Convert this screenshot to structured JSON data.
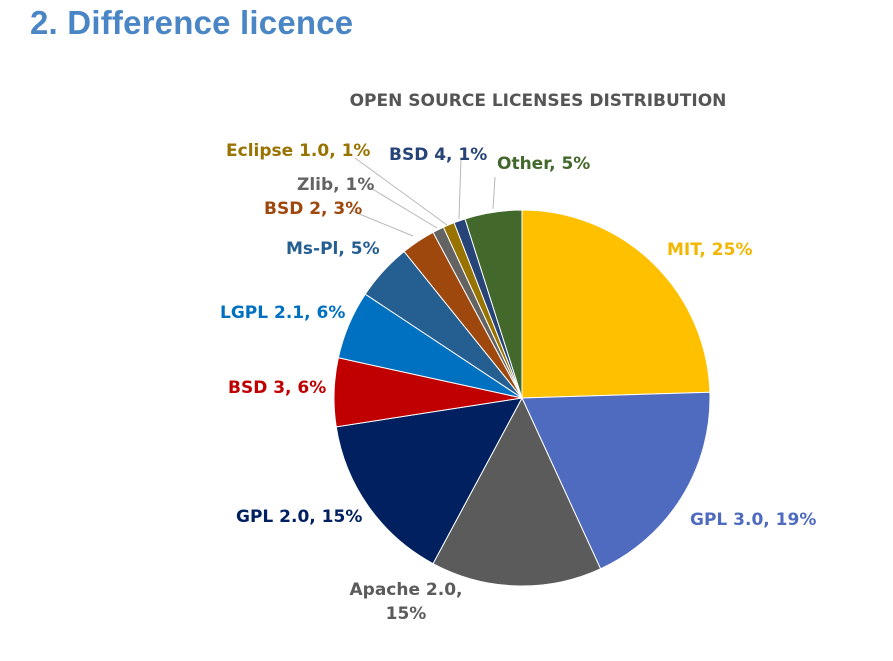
{
  "slide": {
    "title": "2. Difference licence"
  },
  "chart_data": {
    "type": "pie",
    "title": "OPEN SOURCE LICENSES DISTRIBUTION",
    "slices": [
      {
        "label": "MIT",
        "value": 25,
        "display": "MIT, 25%",
        "color": "#ffc000"
      },
      {
        "label": "GPL 3.0",
        "value": 19,
        "display": "GPL 3.0, 19%",
        "color": "#4f6bbf"
      },
      {
        "label": "Apache 2.0",
        "value": 15,
        "display": "Apache 2.0,|15%",
        "color": "#5b5b5b"
      },
      {
        "label": "GPL 2.0",
        "value": 15,
        "display": "GPL 2.0, 15%",
        "color": "#002060"
      },
      {
        "label": "BSD 3",
        "value": 6,
        "display": "BSD 3, 6%",
        "color": "#c00000"
      },
      {
        "label": "LGPL 2.1",
        "value": 6,
        "display": "LGPL 2.1, 6%",
        "color": "#0070c0"
      },
      {
        "label": "Ms-Pl",
        "value": 5,
        "display": "Ms-Pl, 5%",
        "color": "#255e91"
      },
      {
        "label": "BSD 2",
        "value": 3,
        "display": "BSD 2, 3%",
        "color": "#9e480e"
      },
      {
        "label": "Zlib",
        "value": 1,
        "display": "Zlib, 1%",
        "color": "#636363"
      },
      {
        "label": "Eclipse 1.0",
        "value": 1,
        "display": "Eclipse 1.0, 1%",
        "color": "#997300"
      },
      {
        "label": "BSD 4",
        "value": 1,
        "display": "BSD 4, 1%",
        "color": "#264478"
      },
      {
        "label": "Other",
        "value": 5,
        "display": "Other, 5%",
        "color": "#43682b"
      }
    ],
    "label_colors": {
      "MIT": "#f2b700",
      "GPL 3.0": "#4f6bbf",
      "Apache 2.0": "#5b5b5b",
      "GPL 2.0": "#002060",
      "BSD 3": "#c00000",
      "LGPL 2.1": "#0070c0",
      "Ms-Pl": "#255e91",
      "BSD 2": "#9e480e",
      "Zlib": "#636363",
      "Eclipse 1.0": "#997300",
      "BSD 4": "#264478",
      "Other": "#43682b"
    },
    "start_angle_deg": 0,
    "direction": "clockwise",
    "legend": "none"
  }
}
